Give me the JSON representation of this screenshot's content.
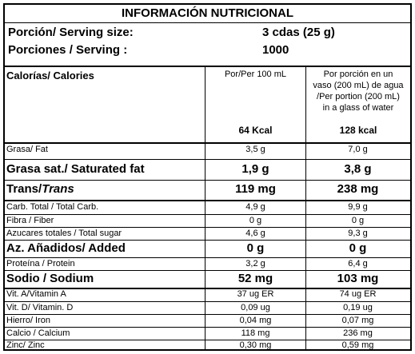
{
  "title": "INFORMACIÓN NUTRICIONAL",
  "serving": [
    {
      "label": "Porción/  Serving size:",
      "value": "3 cdas (25 g)"
    },
    {
      "label": "Porciones / Serving :",
      "value": "1000"
    }
  ],
  "header": {
    "calories_label": "Calorías/ Calories",
    "col_a": "Por/Per 100 mL",
    "col_b_lines": [
      "Por porción en un",
      "vaso (200 mL) de agua",
      "/Per portion (200 mL)",
      "in a glass of water"
    ],
    "kcal_a": "64 Kcal",
    "kcal_b": "128 kcal"
  },
  "rows": [
    {
      "name": "Grasa/ Fat",
      "a": "3,5 g",
      "b": "7,0 g",
      "style": "small"
    },
    {
      "name": "Grasa sat./ Saturated fat",
      "a": "1,9 g",
      "b": "3,8 g",
      "style": "big"
    },
    {
      "name_plain": "Trans/",
      "name_italic": "Trans",
      "a": "119 mg",
      "b": "238 mg",
      "style": "big"
    },
    {
      "name": "Carb. Total / Total Carb.",
      "a": "4,9 g",
      "b": "9,9 g",
      "style": "small"
    },
    {
      "name": "Fibra / Fiber",
      "a": "0 g",
      "b": "0 g",
      "style": "small"
    },
    {
      "name": "Azucares totales / Total sugar",
      "a": "4,6 g",
      "b": "9,3 g",
      "style": "small"
    },
    {
      "name": "Az. Añadidos/ Added",
      "a": "0 g",
      "b": "0 g",
      "style": "big"
    },
    {
      "name": "Proteína / Protein",
      "a": "3,2 g",
      "b": "6,4 g",
      "style": "small"
    },
    {
      "name": "Sodio / Sodium",
      "a": "52 mg",
      "b": "103 mg",
      "style": "big"
    },
    {
      "name": "Vit. A/Vitamin A",
      "a": "37 ug ER",
      "b": "74 ug ER",
      "style": "small"
    },
    {
      "name": "Vit. D/ Vitamin. D",
      "a": "0,09 ug",
      "b": "0,19 ug",
      "style": "small"
    },
    {
      "name": "Hierro/ Iron",
      "a": "0,04 mg",
      "b": "0,07 mg",
      "style": "small"
    },
    {
      "name": "Calcio / Calcium",
      "a": "118 mg",
      "b": "236 mg",
      "style": "small"
    },
    {
      "name": "Zinc/  Zinc",
      "a": "0,30 mg",
      "b": "0,59 mg",
      "style": "small"
    }
  ]
}
